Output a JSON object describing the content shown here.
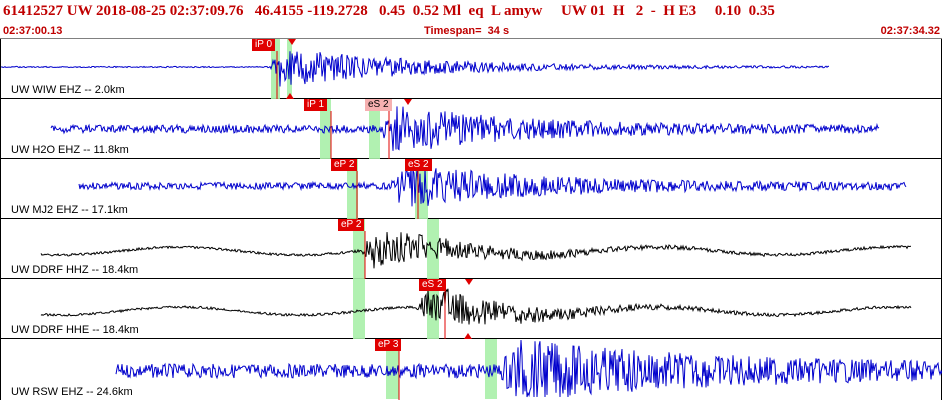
{
  "header": {
    "event_line": "61412527 UW 2018-08-25 02:37:09.76   46.4155 -119.2728   0.45  0.52 Ml  eq  L amyw     UW 01  H   2  -  H E3     0.10  0.35",
    "start_time": "02:37:00.13",
    "timespan": "Timespan=  34 s",
    "end_time": "02:37:34.32"
  },
  "channels": [
    {
      "label": "UW WIW EHZ -- 2.0km",
      "color": "#0000cc",
      "picks": [
        {
          "label": "iP 0",
          "style": "red"
        }
      ]
    },
    {
      "label": "UW H2O EHZ -- 11.8km",
      "color": "#0000cc",
      "picks": [
        {
          "label": "iP 1",
          "style": "red"
        },
        {
          "label": "eS 2",
          "style": "light"
        }
      ]
    },
    {
      "label": "UW MJ2 EHZ -- 17.1km",
      "color": "#0000cc",
      "picks": [
        {
          "label": "eP 2",
          "style": "red"
        },
        {
          "label": "eS 2",
          "style": "red"
        }
      ]
    },
    {
      "label": "UW DDRF HHZ -- 18.4km",
      "color": "#000000",
      "picks": [
        {
          "label": "eP 2",
          "style": "red"
        }
      ]
    },
    {
      "label": "UW DDRF HHE -- 18.4km",
      "color": "#000000",
      "picks": [
        {
          "label": "eS 2",
          "style": "red"
        }
      ]
    },
    {
      "label": "UW RSW EHZ -- 24.6km",
      "color": "#0000cc",
      "picks": [
        {
          "label": "eP 3",
          "style": "red"
        }
      ]
    }
  ]
}
